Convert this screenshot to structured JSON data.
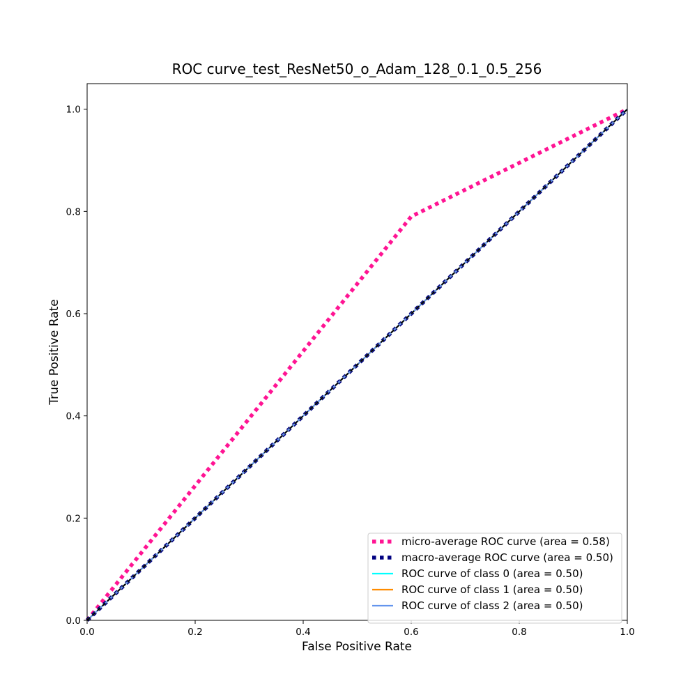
{
  "chart_data": {
    "type": "line",
    "title": "ROC curve_test_ResNet50_o_Adam_128_0.1_0.5_256",
    "xlabel": "False Positive Rate",
    "ylabel": "True Positive Rate",
    "xlim": [
      0.0,
      1.0
    ],
    "ylim": [
      0.0,
      1.05
    ],
    "xticks": [
      0.0,
      0.2,
      0.4,
      0.6,
      0.8,
      1.0
    ],
    "yticks": [
      0.0,
      0.2,
      0.4,
      0.6,
      0.8,
      1.0
    ],
    "xtick_labels": [
      "0.0",
      "0.2",
      "0.4",
      "0.6",
      "0.8",
      "1.0"
    ],
    "ytick_labels": [
      "0.0",
      "0.2",
      "0.4",
      "0.6",
      "0.8",
      "1.0"
    ],
    "grid": false,
    "legend_position": "lower-right",
    "series": [
      {
        "name": "micro-average ROC curve (area = 0.58)",
        "color": "#ff1493",
        "style": "dotted",
        "x": [
          0.0,
          0.6,
          1.0
        ],
        "y": [
          0.0,
          0.79,
          1.0
        ]
      },
      {
        "name": "macro-average ROC curve (area = 0.50)",
        "color": "#000080",
        "style": "dotted",
        "x": [
          0.0,
          1.0
        ],
        "y": [
          0.0,
          1.0
        ]
      },
      {
        "name": "ROC curve of class 0 (area = 0.50)",
        "color": "#00ffff",
        "style": "solid",
        "x": [
          0.0,
          1.0
        ],
        "y": [
          0.0,
          1.0
        ]
      },
      {
        "name": "ROC curve of class 1 (area = 0.50)",
        "color": "#ff8c00",
        "style": "solid",
        "x": [
          0.0,
          1.0
        ],
        "y": [
          0.0,
          1.0
        ]
      },
      {
        "name": "ROC curve of class 2 (area = 0.50)",
        "color": "#6495ed",
        "style": "solid",
        "x": [
          0.0,
          1.0
        ],
        "y": [
          0.0,
          1.0
        ]
      },
      {
        "name": "",
        "color": "#000000",
        "style": "dashed",
        "x": [
          0.0,
          1.0
        ],
        "y": [
          0.0,
          1.0
        ]
      }
    ]
  }
}
